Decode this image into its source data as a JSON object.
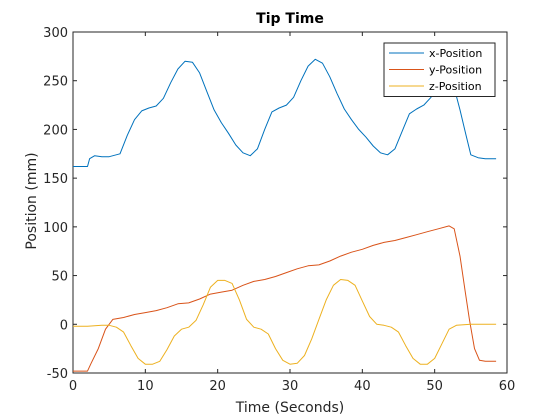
{
  "chart_data": {
    "type": "line",
    "title": "Tip Time",
    "xlabel": "Time (Seconds)",
    "ylabel": "Position (mm)",
    "xlim": [
      0,
      60
    ],
    "ylim": [
      -50,
      300
    ],
    "xticks": [
      0,
      10,
      20,
      30,
      40,
      50,
      60
    ],
    "yticks": [
      -50,
      0,
      50,
      100,
      150,
      200,
      250,
      300
    ],
    "grid": false,
    "legend_position": "top-right",
    "series": [
      {
        "name": "x-Position",
        "color": "#0072BD",
        "x": [
          0,
          2,
          2.3,
          3,
          4,
          5,
          6.5,
          7.5,
          8.5,
          9.5,
          10.5,
          11.5,
          12.5,
          13.5,
          14.5,
          15.5,
          16.5,
          17.5,
          18.5,
          19.5,
          20.5,
          21.5,
          22.5,
          23.5,
          24.5,
          25.5,
          26.5,
          27.5,
          28.5,
          29.5,
          30.5,
          31.5,
          32.5,
          33.5,
          34.5,
          35.5,
          36.5,
          37.5,
          38.5,
          39.5,
          40.5,
          41.5,
          42.5,
          43.5,
          44.5,
          45.5,
          46.5,
          47.5,
          48.5,
          49.5,
          50.5,
          51.5,
          52,
          52.8,
          53.5,
          54.3,
          55,
          56,
          57,
          58.5
        ],
        "y": [
          162,
          162,
          170,
          173,
          172,
          172,
          175,
          194,
          210,
          219,
          222,
          224,
          232,
          248,
          262,
          270,
          269,
          258,
          239,
          220,
          207,
          196,
          184,
          176,
          173,
          180,
          200,
          218,
          222,
          225,
          233,
          250,
          265,
          272,
          268,
          254,
          237,
          221,
          210,
          200,
          192,
          183,
          176,
          174,
          180,
          198,
          216,
          221,
          225,
          233,
          247,
          254,
          252,
          240,
          220,
          195,
          174,
          171,
          170,
          170
        ]
      },
      {
        "name": "y-Position",
        "color": "#D95319",
        "x": [
          0,
          2,
          2.5,
          3.5,
          4.5,
          5.5,
          7,
          8.5,
          10,
          11.5,
          13,
          14.5,
          16,
          17.5,
          19,
          20.5,
          22,
          23.5,
          25,
          26.5,
          28,
          29.5,
          31,
          32.5,
          34,
          35.5,
          37,
          38.5,
          40,
          41.5,
          43,
          44.5,
          46,
          47.5,
          49,
          50.5,
          52,
          52.7,
          53.5,
          54.2,
          54.8,
          55.5,
          56.2,
          57,
          58.5
        ],
        "y": [
          -48,
          -48,
          -40,
          -25,
          -5,
          5,
          7,
          10,
          12,
          14,
          17,
          21,
          22,
          26,
          31,
          33,
          35,
          40,
          44,
          46,
          49,
          53,
          57,
          60,
          61,
          65,
          70,
          74,
          77,
          81,
          84,
          86,
          89,
          92,
          95,
          98,
          101,
          98,
          70,
          35,
          5,
          -25,
          -37,
          -38,
          -38
        ]
      },
      {
        "name": "z-Position",
        "color": "#EDB120",
        "x": [
          0,
          2,
          4,
          5,
          6,
          7,
          8,
          9,
          10,
          11,
          12,
          13,
          14,
          15,
          16,
          17,
          18,
          19,
          20,
          21,
          22,
          23,
          24,
          25,
          26,
          27,
          28,
          29,
          30,
          31,
          32,
          33,
          34,
          35,
          36,
          37,
          38,
          39,
          40,
          41,
          42,
          43,
          44,
          45,
          46,
          47,
          48,
          49,
          50,
          51,
          52,
          53,
          55,
          57,
          58.5
        ],
        "y": [
          -2,
          -2,
          -1,
          -1,
          -3,
          -8,
          -22,
          -35,
          -41,
          -41,
          -38,
          -26,
          -12,
          -5,
          -3,
          4,
          20,
          38,
          45,
          45,
          42,
          25,
          5,
          -3,
          -5,
          -10,
          -25,
          -37,
          -41,
          -40,
          -32,
          -15,
          5,
          25,
          40,
          46,
          45,
          40,
          24,
          8,
          0,
          -1,
          -3,
          -8,
          -22,
          -35,
          -41,
          -41,
          -35,
          -20,
          -5,
          -1,
          0,
          0,
          0
        ]
      }
    ]
  }
}
